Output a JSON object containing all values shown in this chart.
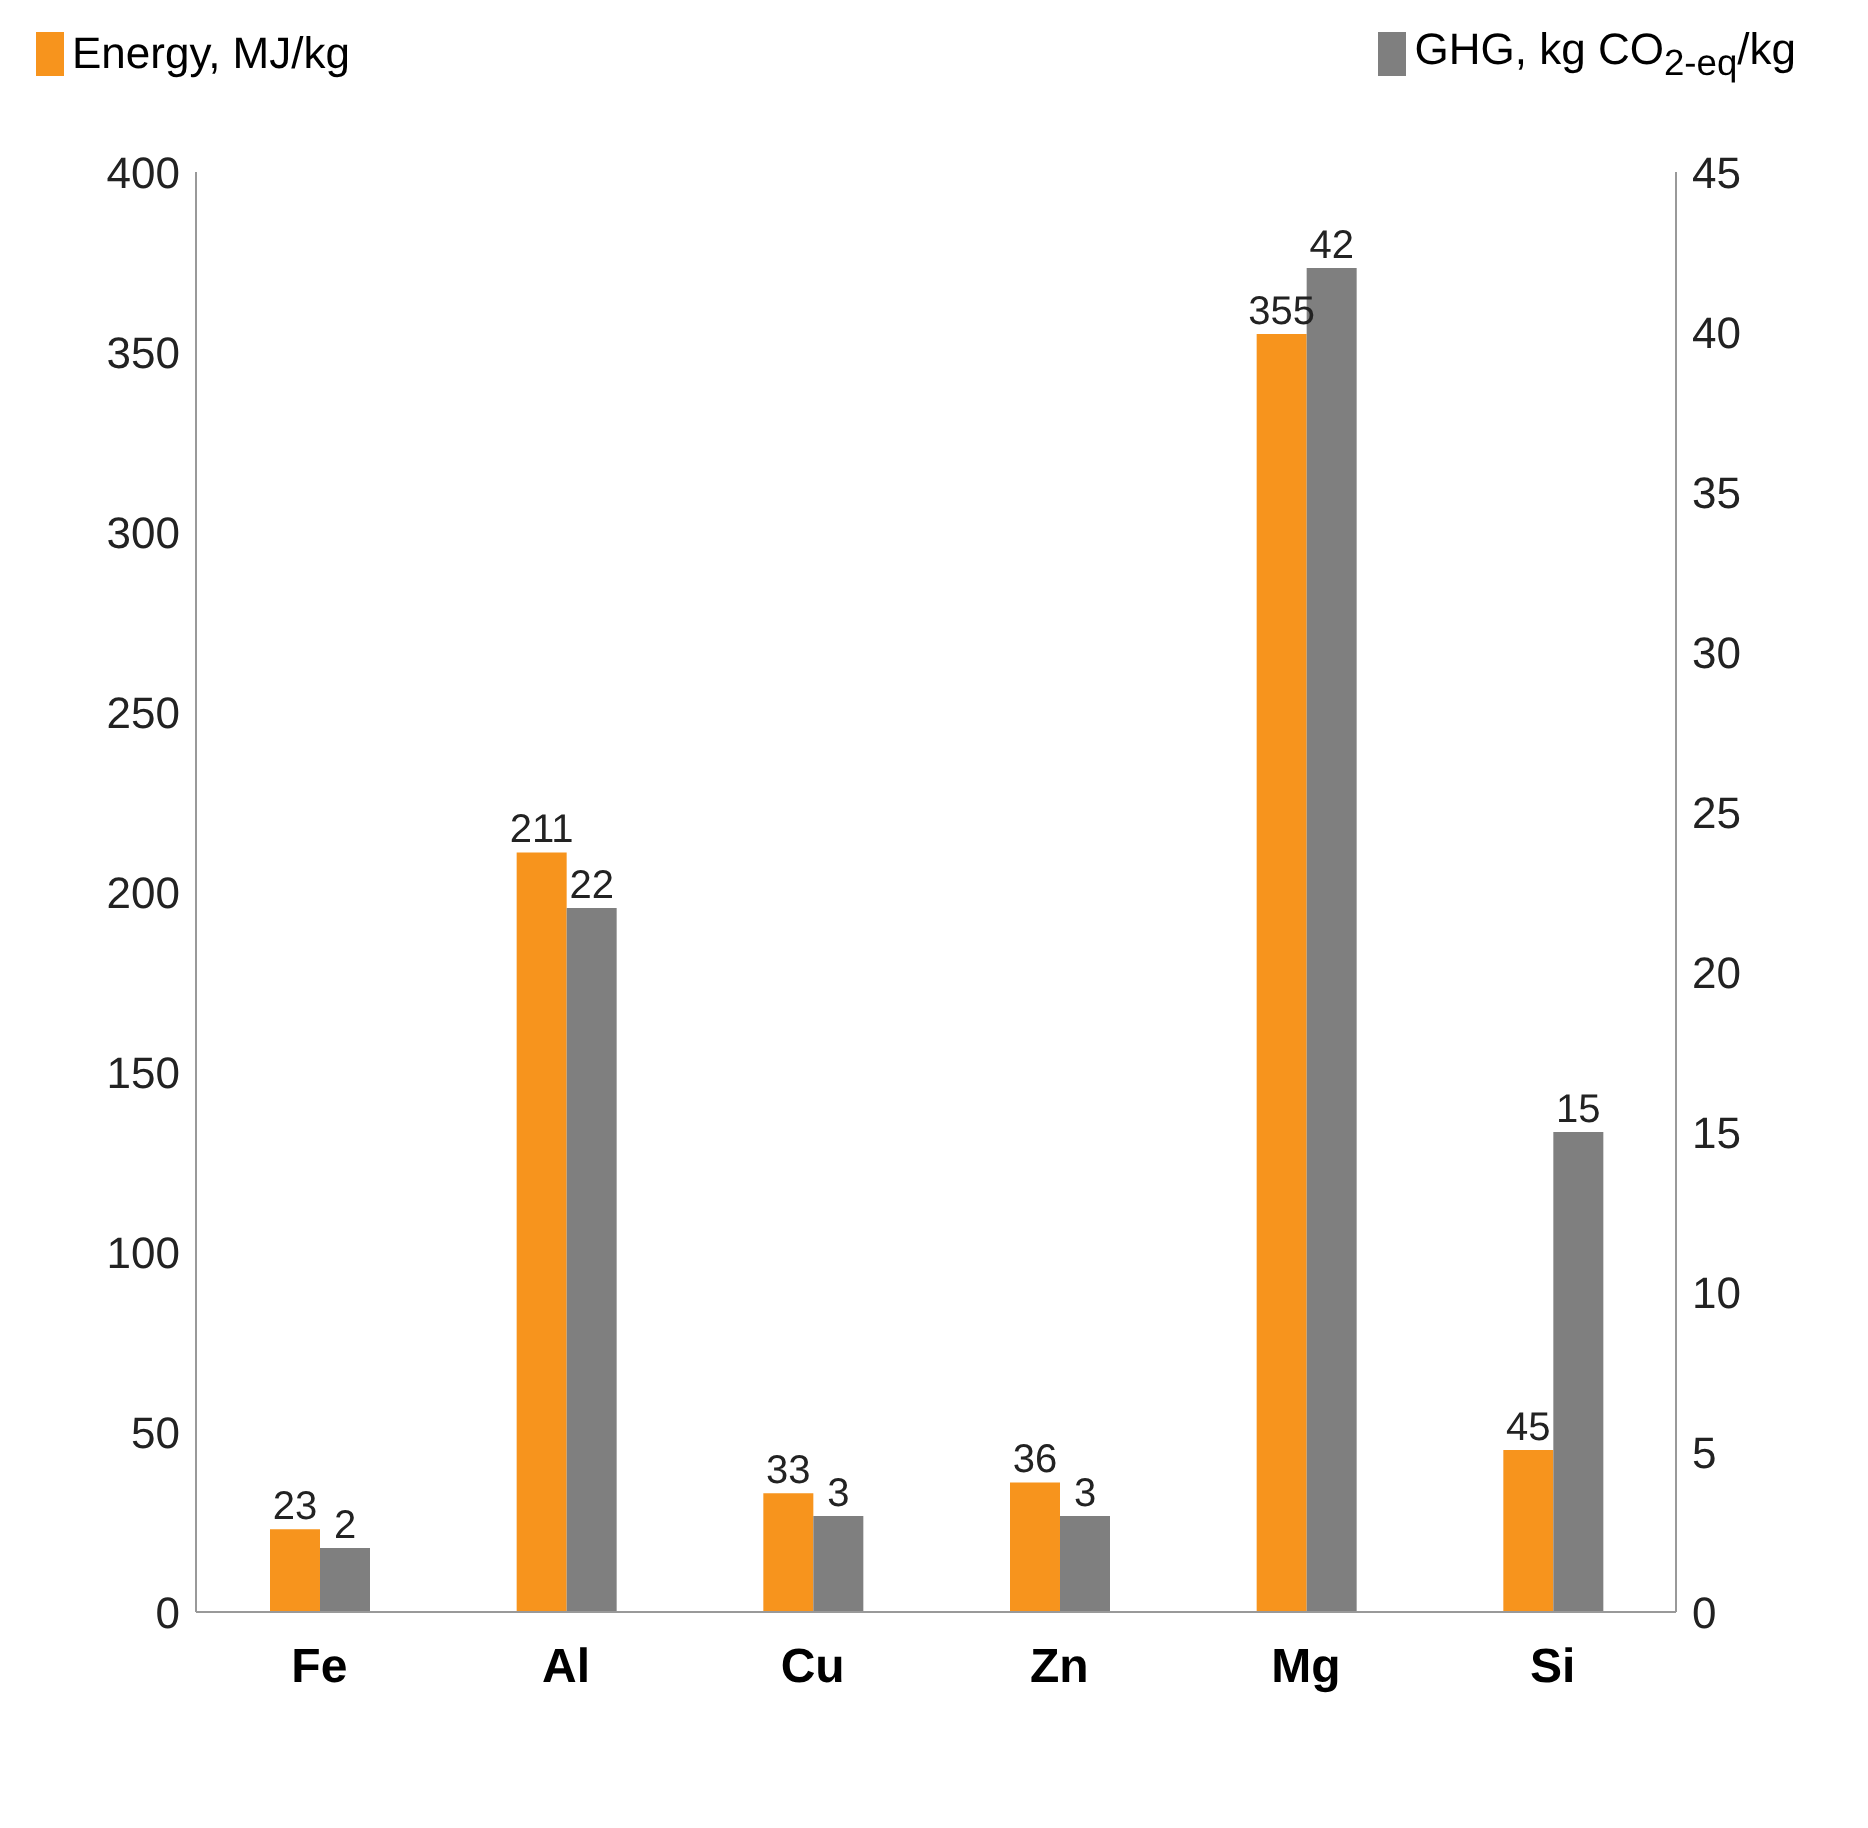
{
  "chart_data": {
    "type": "bar",
    "categories": [
      "Fe",
      "Al",
      "Cu",
      "Zn",
      "Mg",
      "Si"
    ],
    "series": [
      {
        "name": "Energy, MJ/kg",
        "color": "#f7941d",
        "values": [
          23,
          211,
          33,
          36,
          355,
          45
        ]
      },
      {
        "name": "GHG, kg CO$_{2-eq}$/kg",
        "color": "#7f7f7f",
        "values": [
          2,
          22,
          3,
          3,
          42,
          15
        ],
        "axis": "y2"
      }
    ],
    "ylim": [
      0,
      400
    ],
    "yticks": [
      0,
      50,
      100,
      150,
      200,
      250,
      300,
      350,
      400
    ],
    "y2lim": [
      0,
      45
    ],
    "y2ticks": [
      0,
      5,
      10,
      15,
      20,
      25,
      30,
      35,
      40,
      45
    ],
    "data_labels": true,
    "legend": "top",
    "grid": false
  }
}
